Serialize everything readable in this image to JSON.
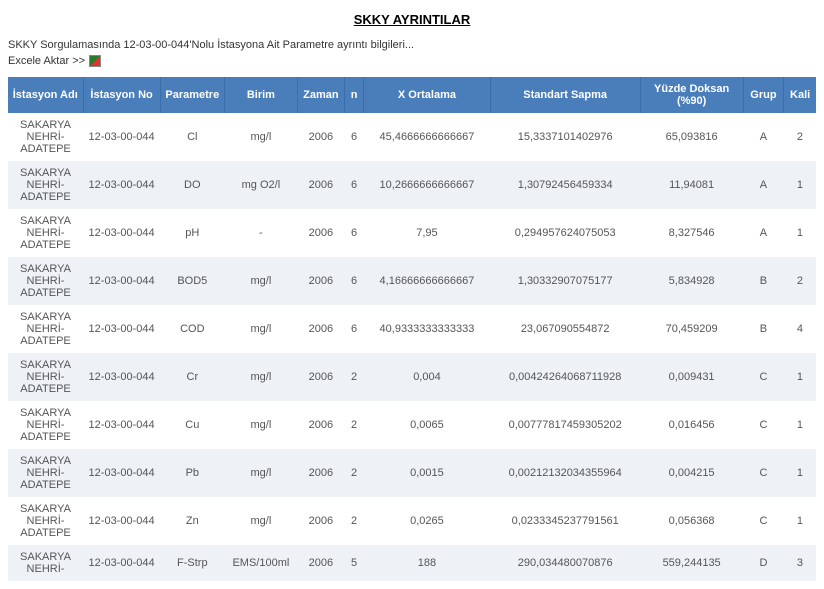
{
  "page": {
    "title": "SKKY AYRINTILAR",
    "subtitle": "SKKY Sorgulamasında 12-03-00-044'Nolu İstasyona Ait Parametre ayrıntı bilgileri...",
    "export_label": "Excele Aktar >>"
  },
  "colors": {
    "header_bg": "#4a7ebb",
    "header_text": "#ffffff",
    "row_alt_bg": "#eef1f6",
    "row_bg": "#ffffff",
    "text": "#555555"
  },
  "table": {
    "columns": [
      {
        "key": "istasyon_adi",
        "label": "İstasyon Adı"
      },
      {
        "key": "istasyon_no",
        "label": "İstasyon No"
      },
      {
        "key": "parametre",
        "label": "Parametre"
      },
      {
        "key": "birim",
        "label": "Birim"
      },
      {
        "key": "zaman",
        "label": "Zaman"
      },
      {
        "key": "n",
        "label": "n"
      },
      {
        "key": "xort",
        "label": "X Ortalama"
      },
      {
        "key": "std",
        "label": "Standart Sapma"
      },
      {
        "key": "pct90",
        "label": "Yüzde Doksan (%90)"
      },
      {
        "key": "grup",
        "label": "Grup"
      },
      {
        "key": "kali",
        "label": "Kali"
      }
    ],
    "rows": [
      {
        "istasyon_adi": "SAKARYA NEHRİ-ADATEPE",
        "istasyon_no": "12-03-00-044",
        "parametre": "Cl",
        "birim": "mg/l",
        "zaman": "2006",
        "n": "6",
        "xort": "45,4666666666667",
        "std": "15,3337101402976",
        "pct90": "65,093816",
        "grup": "A",
        "kali": "2"
      },
      {
        "istasyon_adi": "SAKARYA NEHRİ-ADATEPE",
        "istasyon_no": "12-03-00-044",
        "parametre": "DO",
        "birim": "mg O2/l",
        "zaman": "2006",
        "n": "6",
        "xort": "10,2666666666667",
        "std": "1,30792456459334",
        "pct90": "11,94081",
        "grup": "A",
        "kali": "1"
      },
      {
        "istasyon_adi": "SAKARYA NEHRİ-ADATEPE",
        "istasyon_no": "12-03-00-044",
        "parametre": "pH",
        "birim": "-",
        "zaman": "2006",
        "n": "6",
        "xort": "7,95",
        "std": "0,294957624075053",
        "pct90": "8,327546",
        "grup": "A",
        "kali": "1"
      },
      {
        "istasyon_adi": "SAKARYA NEHRİ-ADATEPE",
        "istasyon_no": "12-03-00-044",
        "parametre": "BOD5",
        "birim": "mg/l",
        "zaman": "2006",
        "n": "6",
        "xort": "4,16666666666667",
        "std": "1,30332907075177",
        "pct90": "5,834928",
        "grup": "B",
        "kali": "2"
      },
      {
        "istasyon_adi": "SAKARYA NEHRİ-ADATEPE",
        "istasyon_no": "12-03-00-044",
        "parametre": "COD",
        "birim": "mg/l",
        "zaman": "2006",
        "n": "6",
        "xort": "40,9333333333333",
        "std": "23,067090554872",
        "pct90": "70,459209",
        "grup": "B",
        "kali": "4"
      },
      {
        "istasyon_adi": "SAKARYA NEHRİ-ADATEPE",
        "istasyon_no": "12-03-00-044",
        "parametre": "Cr",
        "birim": "mg/l",
        "zaman": "2006",
        "n": "2",
        "xort": "0,004",
        "std": "0,00424264068711928",
        "pct90": "0,009431",
        "grup": "C",
        "kali": "1"
      },
      {
        "istasyon_adi": "SAKARYA NEHRİ-ADATEPE",
        "istasyon_no": "12-03-00-044",
        "parametre": "Cu",
        "birim": "mg/l",
        "zaman": "2006",
        "n": "2",
        "xort": "0,0065",
        "std": "0,00777817459305202",
        "pct90": "0,016456",
        "grup": "C",
        "kali": "1"
      },
      {
        "istasyon_adi": "SAKARYA NEHRİ-ADATEPE",
        "istasyon_no": "12-03-00-044",
        "parametre": "Pb",
        "birim": "mg/l",
        "zaman": "2006",
        "n": "2",
        "xort": "0,0015",
        "std": "0,00212132034355964",
        "pct90": "0,004215",
        "grup": "C",
        "kali": "1"
      },
      {
        "istasyon_adi": "SAKARYA NEHRİ-ADATEPE",
        "istasyon_no": "12-03-00-044",
        "parametre": "Zn",
        "birim": "mg/l",
        "zaman": "2006",
        "n": "2",
        "xort": "0,0265",
        "std": "0,0233345237791561",
        "pct90": "0,056368",
        "grup": "C",
        "kali": "1"
      },
      {
        "istasyon_adi": "SAKARYA NEHRİ-",
        "istasyon_no": "12-03-00-044",
        "parametre": "F-Strp",
        "birim": "EMS/100ml",
        "zaman": "2006",
        "n": "5",
        "xort": "188",
        "std": "290,034480070876",
        "pct90": "559,244135",
        "grup": "D",
        "kali": "3"
      }
    ]
  }
}
